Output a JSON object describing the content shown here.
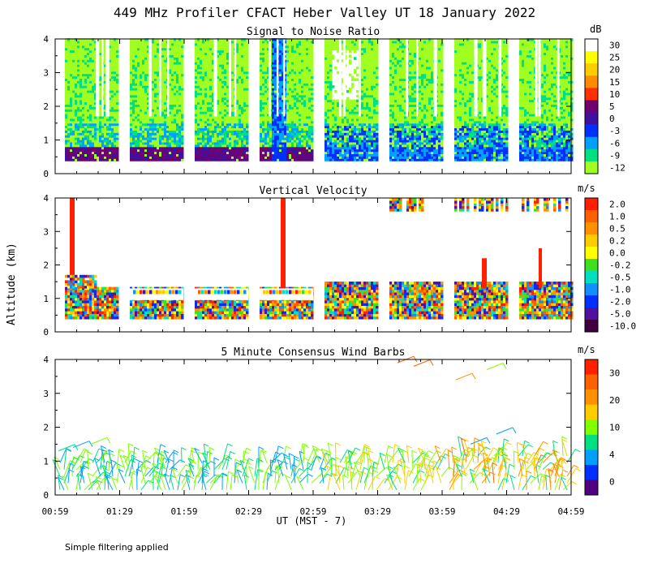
{
  "chart_data": {
    "type": "heatmap",
    "title": "449 MHz Profiler CFACT Heber Valley UT 18 January 2022",
    "ylabel": "Altitude (km)",
    "xlabel": "UT  (MST - 7)",
    "ylim": [
      0,
      4
    ],
    "y_ticks": [
      "0",
      "1",
      "2",
      "3",
      "4"
    ],
    "x_ticks": [
      "00:59",
      "01:29",
      "01:59",
      "02:29",
      "02:59",
      "03:29",
      "03:59",
      "04:29",
      "04:59"
    ],
    "panels": [
      {
        "title": "Signal to Noise Ratio",
        "unit": "dB",
        "colorbar": {
          "labels": [
            "30",
            "25",
            "20",
            "15",
            "10",
            "5",
            "0",
            "-3",
            "-6",
            "-9",
            "-12"
          ],
          "colors": [
            "#ffffff",
            "#ffff00",
            "#ffcc00",
            "#ff8c00",
            "#ff3000",
            "#700070",
            "#4010a0",
            "#0030ff",
            "#00a0ff",
            "#00e080",
            "#a0ff20"
          ]
        }
      },
      {
        "title": "Vertical Velocity",
        "unit": "m/s",
        "colorbar": {
          "labels": [
            "2.0",
            "1.0",
            "0.5",
            "0.2",
            "0.0",
            "-0.2",
            "-0.5",
            "-1.0",
            "-2.0",
            "-5.0",
            "-10.0"
          ],
          "colors": [
            "#ff2000",
            "#ff6000",
            "#ff9000",
            "#ffcc00",
            "#ffff00",
            "#40e020",
            "#00e0c0",
            "#1090ff",
            "#0030ff",
            "#5010a0",
            "#400040"
          ]
        }
      },
      {
        "title": "5 Minute Consensus Wind Barbs",
        "unit": "m/s",
        "colorbar": {
          "labels": [
            "30",
            "20",
            "10",
            "4",
            "0"
          ],
          "colors": [
            "#ff2000",
            "#ff6000",
            "#ff9000",
            "#ffcc00",
            "#80ff00",
            "#00e080",
            "#00a0ff",
            "#0030ff",
            "#500080"
          ]
        }
      }
    ]
  },
  "footer_note": "Simple filtering applied"
}
